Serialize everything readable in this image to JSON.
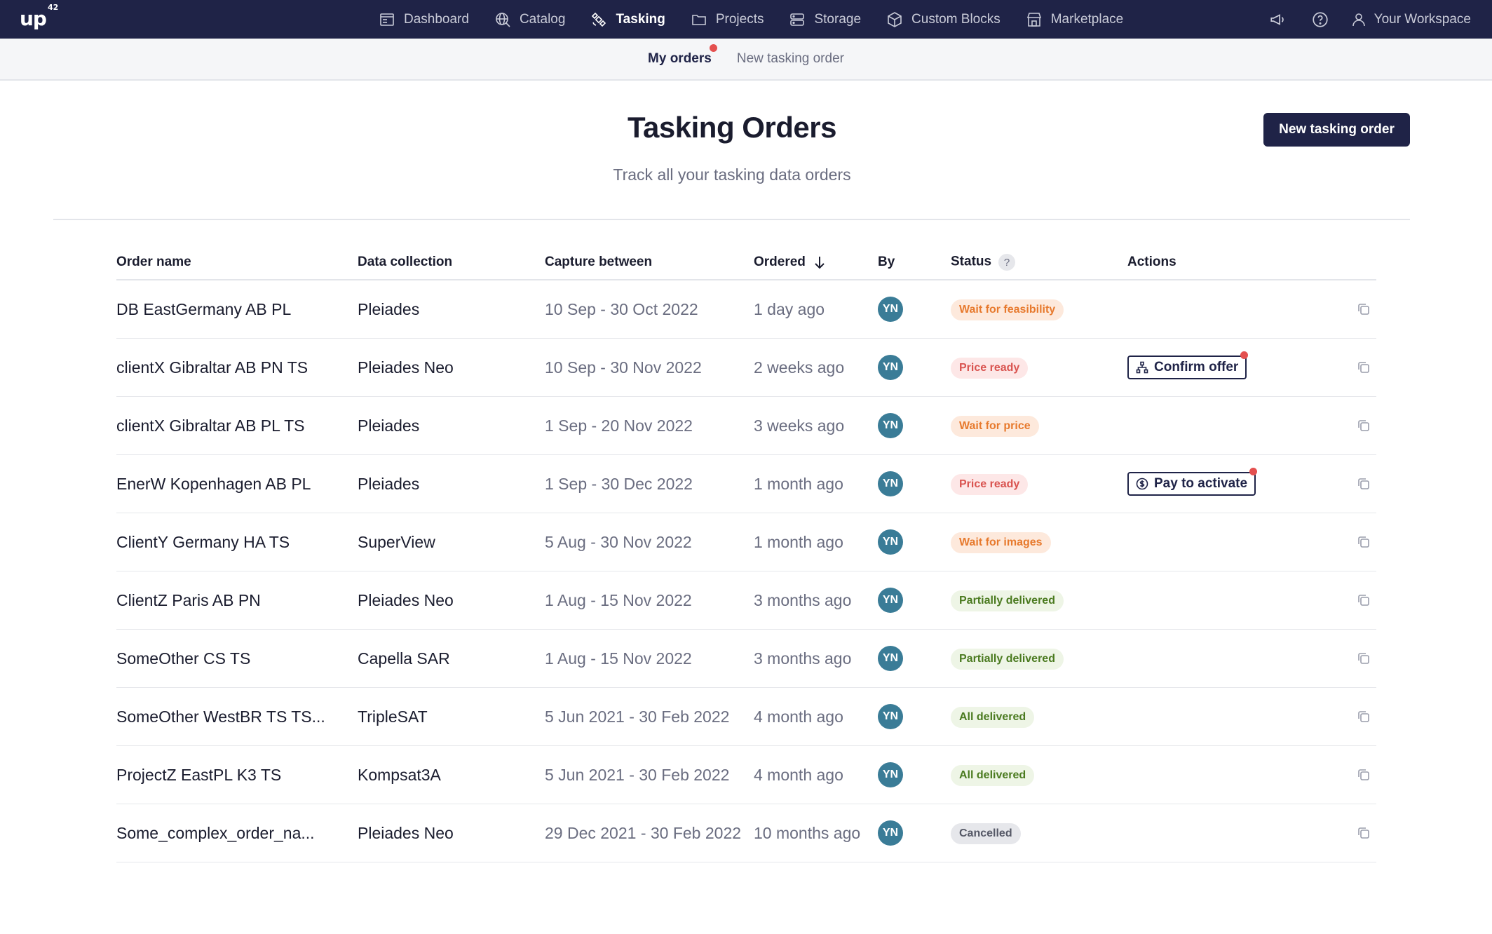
{
  "brand": {
    "logo": "up",
    "logo_sup": "42"
  },
  "nav": {
    "items": [
      {
        "label": "Dashboard",
        "icon": "dashboard-icon",
        "active": false
      },
      {
        "label": "Catalog",
        "icon": "globe-search-icon",
        "active": false
      },
      {
        "label": "Tasking",
        "icon": "satellite-icon",
        "active": true
      },
      {
        "label": "Projects",
        "icon": "folder-icon",
        "active": false
      },
      {
        "label": "Storage",
        "icon": "storage-icon",
        "active": false
      },
      {
        "label": "Custom Blocks",
        "icon": "cube-icon",
        "active": false
      },
      {
        "label": "Marketplace",
        "icon": "store-icon",
        "active": false
      }
    ],
    "workspace_label": "Your Workspace"
  },
  "subnav": {
    "tabs": [
      {
        "label": "My orders",
        "active": true
      },
      {
        "label": "New tasking order",
        "active": false
      }
    ]
  },
  "header": {
    "title": "Tasking Orders",
    "subtitle": "Track all your tasking data orders",
    "new_button": "New tasking order"
  },
  "table": {
    "columns": {
      "order_name": "Order name",
      "data_collection": "Data collection",
      "capture": "Capture between",
      "ordered": "Ordered",
      "by": "By",
      "status": "Status",
      "actions": "Actions"
    },
    "help_glyph": "?",
    "rows": [
      {
        "name": "DB EastGermany AB PL",
        "collection": "Pleiades",
        "capture": "10 Sep - 30 Oct 2022",
        "ordered": "1 day ago",
        "by": "YN",
        "status": "Wait for feasibility",
        "status_tone": "orange",
        "action": ""
      },
      {
        "name": "clientX Gibraltar AB PN TS",
        "collection": "Pleiades Neo",
        "capture": "10 Sep - 30 Nov 2022",
        "ordered": "2 weeks ago",
        "by": "YN",
        "status": "Price ready",
        "status_tone": "red",
        "action": "Confirm offer",
        "action_icon": "org-chart-icon"
      },
      {
        "name": "clientX Gibraltar AB PL TS",
        "collection": "Pleiades",
        "capture": "1 Sep - 20 Nov 2022",
        "ordered": "3 weeks ago",
        "by": "YN",
        "status": "Wait for price",
        "status_tone": "orange",
        "action": ""
      },
      {
        "name": "EnerW Kopenhagen AB PL",
        "collection": "Pleiades",
        "capture": "1 Sep - 30 Dec 2022",
        "ordered": "1 month ago",
        "by": "YN",
        "status": "Price ready",
        "status_tone": "red",
        "action": "Pay to activate",
        "action_icon": "dollar-circle-icon"
      },
      {
        "name": "ClientY Germany HA TS",
        "collection": "SuperView",
        "capture": "5 Aug - 30 Nov 2022",
        "ordered": "1 month ago",
        "by": "YN",
        "status": "Wait for images",
        "status_tone": "orange",
        "action": ""
      },
      {
        "name": "ClientZ Paris AB PN",
        "collection": "Pleiades Neo",
        "capture": "1 Aug - 15 Nov 2022",
        "ordered": "3 months ago",
        "by": "YN",
        "status": "Partially delivered",
        "status_tone": "green",
        "action": ""
      },
      {
        "name": "SomeOther CS TS",
        "collection": "Capella SAR",
        "capture": "1 Aug - 15 Nov 2022",
        "ordered": "3 months ago",
        "by": "YN",
        "status": "Partially delivered",
        "status_tone": "green",
        "action": ""
      },
      {
        "name": "SomeOther WestBR TS TS...",
        "collection": "TripleSAT",
        "capture": "5 Jun 2021 - 30 Feb 2022",
        "ordered": "4 month ago",
        "by": "YN",
        "status": "All delivered",
        "status_tone": "green",
        "action": ""
      },
      {
        "name": "ProjectZ EastPL K3 TS",
        "collection": "Kompsat3A",
        "capture": "5 Jun 2021 - 30 Feb 2022",
        "ordered": "4 month ago",
        "by": "YN",
        "status": "All delivered",
        "status_tone": "green",
        "action": ""
      },
      {
        "name": "Some_complex_order_na...",
        "collection": "Pleiades Neo",
        "capture": "29 Dec 2021 - 30 Feb 2022",
        "ordered": "10 months ago",
        "by": "YN",
        "status": "Cancelled",
        "status_tone": "grey",
        "action": ""
      }
    ]
  },
  "colors": {
    "nav_bg": "#1f2347",
    "accent": "#1f2347",
    "avatar": "#3a7c97",
    "notification_dot": "#e4504f"
  }
}
